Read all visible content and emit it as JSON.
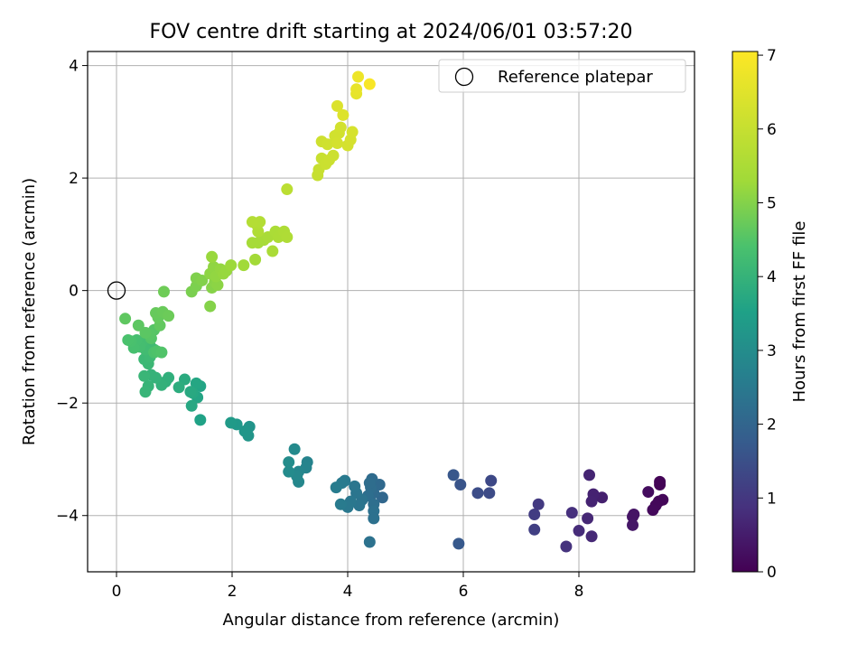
{
  "chart_data": {
    "type": "scatter",
    "title": "FOV centre drift starting at 2024/06/01 03:57:20",
    "xlabel": "Angular distance from reference (arcmin)",
    "ylabel": "Rotation from reference (arcmin)",
    "xlim": [
      -0.5,
      10.0
    ],
    "ylim": [
      -5.0,
      4.25
    ],
    "x_ticks": [
      0,
      2,
      4,
      6,
      8
    ],
    "y_ticks": [
      -4,
      -2,
      0,
      2,
      4
    ],
    "grid": true,
    "legend": {
      "position": "top-right",
      "entries": [
        "Reference platepar"
      ]
    },
    "reference_point": {
      "x": 0,
      "y": 0
    },
    "colorbar": {
      "label": "Hours from first FF file",
      "range": [
        0,
        7.05
      ],
      "ticks": [
        0,
        1,
        2,
        3,
        4,
        5,
        6,
        7
      ],
      "colormap": "viridis"
    },
    "points": [
      {
        "x": 9.4,
        "y": -3.4,
        "t": 0.05
      },
      {
        "x": 9.4,
        "y": -3.45,
        "t": 0.05
      },
      {
        "x": 9.45,
        "y": -3.72,
        "t": 0.1
      },
      {
        "x": 9.38,
        "y": -3.75,
        "t": 0.1
      },
      {
        "x": 9.33,
        "y": -3.82,
        "t": 0.12
      },
      {
        "x": 9.28,
        "y": -3.9,
        "t": 0.15
      },
      {
        "x": 9.2,
        "y": -3.58,
        "t": 0.2
      },
      {
        "x": 8.95,
        "y": -3.98,
        "t": 0.35
      },
      {
        "x": 8.93,
        "y": -4.02,
        "t": 0.35
      },
      {
        "x": 8.93,
        "y": -4.17,
        "t": 0.4
      },
      {
        "x": 8.4,
        "y": -3.68,
        "t": 0.55
      },
      {
        "x": 8.25,
        "y": -3.62,
        "t": 0.6
      },
      {
        "x": 8.22,
        "y": -3.75,
        "t": 0.62
      },
      {
        "x": 8.18,
        "y": -3.28,
        "t": 0.65
      },
      {
        "x": 8.15,
        "y": -4.05,
        "t": 0.7
      },
      {
        "x": 8.22,
        "y": -4.37,
        "t": 0.72
      },
      {
        "x": 8.0,
        "y": -4.27,
        "t": 0.78
      },
      {
        "x": 7.88,
        "y": -3.95,
        "t": 0.85
      },
      {
        "x": 7.78,
        "y": -4.55,
        "t": 0.9
      },
      {
        "x": 7.3,
        "y": -3.8,
        "t": 1.05
      },
      {
        "x": 7.23,
        "y": -3.98,
        "t": 1.1
      },
      {
        "x": 7.23,
        "y": -4.25,
        "t": 1.15
      },
      {
        "x": 6.48,
        "y": -3.38,
        "t": 1.35
      },
      {
        "x": 6.45,
        "y": -3.6,
        "t": 1.4
      },
      {
        "x": 6.25,
        "y": -3.6,
        "t": 1.45
      },
      {
        "x": 5.95,
        "y": -3.45,
        "t": 1.6
      },
      {
        "x": 5.83,
        "y": -3.28,
        "t": 1.65
      },
      {
        "x": 5.92,
        "y": -4.5,
        "t": 1.7
      },
      {
        "x": 4.6,
        "y": -3.68,
        "t": 2.05
      },
      {
        "x": 4.55,
        "y": -3.45,
        "t": 2.1
      },
      {
        "x": 4.45,
        "y": -3.6,
        "t": 2.12
      },
      {
        "x": 4.42,
        "y": -3.35,
        "t": 2.15
      },
      {
        "x": 4.4,
        "y": -3.5,
        "t": 2.18
      },
      {
        "x": 4.38,
        "y": -3.42,
        "t": 2.2
      },
      {
        "x": 4.35,
        "y": -3.65,
        "t": 2.22
      },
      {
        "x": 4.45,
        "y": -3.8,
        "t": 2.25
      },
      {
        "x": 4.45,
        "y": -3.92,
        "t": 2.28
      },
      {
        "x": 4.45,
        "y": -4.05,
        "t": 2.3
      },
      {
        "x": 4.38,
        "y": -4.47,
        "t": 2.32
      },
      {
        "x": 4.25,
        "y": -3.72,
        "t": 2.35
      },
      {
        "x": 4.2,
        "y": -3.82,
        "t": 2.38
      },
      {
        "x": 4.15,
        "y": -3.6,
        "t": 2.4
      },
      {
        "x": 4.12,
        "y": -3.48,
        "t": 2.42
      },
      {
        "x": 4.05,
        "y": -3.75,
        "t": 2.45
      },
      {
        "x": 4.0,
        "y": -3.85,
        "t": 2.48
      },
      {
        "x": 3.95,
        "y": -3.38,
        "t": 2.5
      },
      {
        "x": 3.9,
        "y": -3.42,
        "t": 2.52
      },
      {
        "x": 3.88,
        "y": -3.8,
        "t": 2.55
      },
      {
        "x": 3.8,
        "y": -3.5,
        "t": 2.58
      },
      {
        "x": 3.3,
        "y": -3.05,
        "t": 2.75
      },
      {
        "x": 3.28,
        "y": -3.15,
        "t": 2.78
      },
      {
        "x": 3.15,
        "y": -3.22,
        "t": 2.82
      },
      {
        "x": 3.15,
        "y": -3.4,
        "t": 2.85
      },
      {
        "x": 3.12,
        "y": -3.3,
        "t": 2.88
      },
      {
        "x": 3.08,
        "y": -2.82,
        "t": 2.92
      },
      {
        "x": 2.98,
        "y": -3.22,
        "t": 2.95
      },
      {
        "x": 2.98,
        "y": -3.05,
        "t": 2.98
      },
      {
        "x": 2.3,
        "y": -2.42,
        "t": 3.2
      },
      {
        "x": 2.28,
        "y": -2.58,
        "t": 3.22
      },
      {
        "x": 2.22,
        "y": -2.5,
        "t": 3.25
      },
      {
        "x": 2.08,
        "y": -2.38,
        "t": 3.3
      },
      {
        "x": 1.98,
        "y": -2.35,
        "t": 3.35
      },
      {
        "x": 1.45,
        "y": -2.3,
        "t": 3.55
      },
      {
        "x": 1.45,
        "y": -1.7,
        "t": 3.6
      },
      {
        "x": 1.4,
        "y": -1.9,
        "t": 3.62
      },
      {
        "x": 1.38,
        "y": -1.65,
        "t": 3.65
      },
      {
        "x": 1.32,
        "y": -1.82,
        "t": 3.68
      },
      {
        "x": 1.3,
        "y": -2.05,
        "t": 3.7
      },
      {
        "x": 1.28,
        "y": -1.8,
        "t": 3.72
      },
      {
        "x": 1.18,
        "y": -1.58,
        "t": 3.78
      },
      {
        "x": 1.08,
        "y": -1.72,
        "t": 3.82
      },
      {
        "x": 0.9,
        "y": -1.55,
        "t": 3.9
      },
      {
        "x": 0.85,
        "y": -1.62,
        "t": 3.92
      },
      {
        "x": 0.78,
        "y": -1.68,
        "t": 3.95
      },
      {
        "x": 0.68,
        "y": -1.55,
        "t": 3.98
      },
      {
        "x": 0.6,
        "y": -1.5,
        "t": 4.0
      },
      {
        "x": 0.55,
        "y": -1.7,
        "t": 4.02
      },
      {
        "x": 0.5,
        "y": -1.8,
        "t": 4.05
      },
      {
        "x": 0.48,
        "y": -1.52,
        "t": 4.08
      },
      {
        "x": 0.55,
        "y": -1.3,
        "t": 4.12
      },
      {
        "x": 0.48,
        "y": -1.22,
        "t": 4.15
      },
      {
        "x": 0.58,
        "y": -1.18,
        "t": 4.18
      },
      {
        "x": 0.65,
        "y": -1.05,
        "t": 4.2
      },
      {
        "x": 0.58,
        "y": -0.98,
        "t": 4.22
      },
      {
        "x": 0.5,
        "y": -1.05,
        "t": 4.25
      },
      {
        "x": 0.45,
        "y": -0.9,
        "t": 4.28
      },
      {
        "x": 0.4,
        "y": -1.0,
        "t": 4.3
      },
      {
        "x": 0.35,
        "y": -0.88,
        "t": 4.32
      },
      {
        "x": 0.3,
        "y": -1.02,
        "t": 4.35
      },
      {
        "x": 0.25,
        "y": -0.9,
        "t": 4.38
      },
      {
        "x": 0.2,
        "y": -0.88,
        "t": 4.4
      },
      {
        "x": 0.65,
        "y": -1.1,
        "t": 4.42
      },
      {
        "x": 0.7,
        "y": -1.08,
        "t": 4.45
      },
      {
        "x": 0.78,
        "y": -1.1,
        "t": 4.48
      },
      {
        "x": 0.6,
        "y": -0.85,
        "t": 4.5
      },
      {
        "x": 0.65,
        "y": -0.7,
        "t": 4.52
      },
      {
        "x": 0.58,
        "y": -0.78,
        "t": 4.55
      },
      {
        "x": 0.5,
        "y": -0.75,
        "t": 4.58
      },
      {
        "x": 0.38,
        "y": -0.62,
        "t": 4.6
      },
      {
        "x": 0.15,
        "y": -0.5,
        "t": 4.62
      },
      {
        "x": 0.75,
        "y": -0.62,
        "t": 4.65
      },
      {
        "x": 0.72,
        "y": -0.48,
        "t": 4.68
      },
      {
        "x": 0.68,
        "y": -0.4,
        "t": 4.7
      },
      {
        "x": 0.8,
        "y": -0.38,
        "t": 4.72
      },
      {
        "x": 0.9,
        "y": -0.45,
        "t": 4.75
      },
      {
        "x": 0.82,
        "y": -0.02,
        "t": 4.78
      },
      {
        "x": 1.3,
        "y": -0.02,
        "t": 4.9
      },
      {
        "x": 1.38,
        "y": 0.08,
        "t": 4.92
      },
      {
        "x": 1.38,
        "y": 0.22,
        "t": 4.95
      },
      {
        "x": 1.48,
        "y": 0.18,
        "t": 4.98
      },
      {
        "x": 1.62,
        "y": -0.28,
        "t": 5.0
      },
      {
        "x": 1.65,
        "y": 0.05,
        "t": 5.02
      },
      {
        "x": 1.7,
        "y": 0.15,
        "t": 5.05
      },
      {
        "x": 1.75,
        "y": 0.1,
        "t": 5.08
      },
      {
        "x": 1.62,
        "y": 0.3,
        "t": 5.1
      },
      {
        "x": 1.68,
        "y": 0.42,
        "t": 5.12
      },
      {
        "x": 1.72,
        "y": 0.25,
        "t": 5.14
      },
      {
        "x": 1.8,
        "y": 0.38,
        "t": 5.16
      },
      {
        "x": 1.85,
        "y": 0.3,
        "t": 5.18
      },
      {
        "x": 1.9,
        "y": 0.35,
        "t": 5.2
      },
      {
        "x": 1.65,
        "y": 0.6,
        "t": 5.22
      },
      {
        "x": 1.98,
        "y": 0.45,
        "t": 5.25
      },
      {
        "x": 2.2,
        "y": 0.45,
        "t": 5.3
      },
      {
        "x": 2.4,
        "y": 0.55,
        "t": 5.35
      },
      {
        "x": 2.45,
        "y": 0.85,
        "t": 5.38
      },
      {
        "x": 2.35,
        "y": 0.85,
        "t": 5.4
      },
      {
        "x": 2.55,
        "y": 0.9,
        "t": 5.42
      },
      {
        "x": 2.62,
        "y": 0.95,
        "t": 5.45
      },
      {
        "x": 2.7,
        "y": 0.7,
        "t": 5.48
      },
      {
        "x": 2.75,
        "y": 1.05,
        "t": 5.5
      },
      {
        "x": 2.8,
        "y": 0.95,
        "t": 5.52
      },
      {
        "x": 2.9,
        "y": 1.05,
        "t": 5.55
      },
      {
        "x": 2.95,
        "y": 0.95,
        "t": 5.58
      },
      {
        "x": 2.45,
        "y": 1.05,
        "t": 5.6
      },
      {
        "x": 2.42,
        "y": 1.18,
        "t": 5.62
      },
      {
        "x": 2.48,
        "y": 1.22,
        "t": 5.64
      },
      {
        "x": 2.35,
        "y": 1.22,
        "t": 5.66
      },
      {
        "x": 2.95,
        "y": 1.8,
        "t": 5.8
      },
      {
        "x": 3.48,
        "y": 2.05,
        "t": 6.0
      },
      {
        "x": 3.5,
        "y": 2.15,
        "t": 6.02
      },
      {
        "x": 3.55,
        "y": 2.35,
        "t": 6.05
      },
      {
        "x": 3.62,
        "y": 2.25,
        "t": 6.08
      },
      {
        "x": 3.68,
        "y": 2.32,
        "t": 6.1
      },
      {
        "x": 3.75,
        "y": 2.4,
        "t": 6.12
      },
      {
        "x": 3.55,
        "y": 2.65,
        "t": 6.15
      },
      {
        "x": 3.65,
        "y": 2.6,
        "t": 6.18
      },
      {
        "x": 3.78,
        "y": 2.75,
        "t": 6.2
      },
      {
        "x": 3.85,
        "y": 2.8,
        "t": 6.22
      },
      {
        "x": 3.88,
        "y": 2.9,
        "t": 6.24
      },
      {
        "x": 3.82,
        "y": 2.62,
        "t": 6.26
      },
      {
        "x": 4.0,
        "y": 2.58,
        "t": 6.28
      },
      {
        "x": 4.05,
        "y": 2.68,
        "t": 6.3
      },
      {
        "x": 4.08,
        "y": 2.82,
        "t": 6.32
      },
      {
        "x": 3.82,
        "y": 3.28,
        "t": 6.4
      },
      {
        "x": 3.92,
        "y": 3.12,
        "t": 6.45
      },
      {
        "x": 4.15,
        "y": 3.5,
        "t": 6.6
      },
      {
        "x": 4.15,
        "y": 3.58,
        "t": 6.65
      },
      {
        "x": 4.18,
        "y": 3.8,
        "t": 6.75
      },
      {
        "x": 4.38,
        "y": 3.67,
        "t": 6.95
      }
    ]
  }
}
